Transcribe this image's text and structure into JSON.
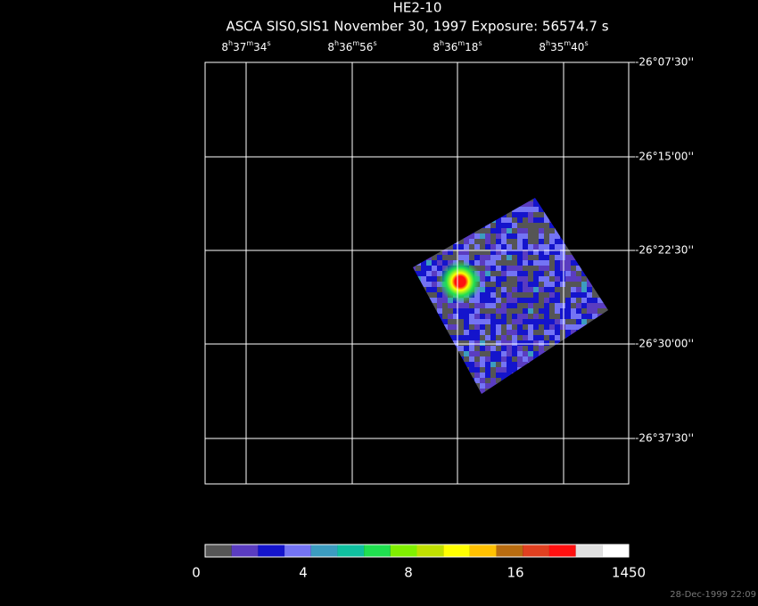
{
  "title": "HE2-10",
  "subtitle": "ASCA SIS0,SIS1 November 30, 1997 Exposure: 56574.7 s",
  "ra_labels": [
    [
      "8",
      "h",
      "37",
      "m",
      "34",
      "s"
    ],
    [
      "8",
      "h",
      "36",
      "m",
      "56",
      "s"
    ],
    [
      "8",
      "h",
      "36",
      "m",
      "18",
      "s"
    ],
    [
      "8",
      "h",
      "35",
      "m",
      "40",
      "s"
    ]
  ],
  "dec_labels": [
    "-26°07'30''",
    "-26°15'00''",
    "-26°22'30''",
    "-26°30'00''",
    "-26°37'30''"
  ],
  "colorbar": {
    "colors": [
      "#555555",
      "#5a3cc0",
      "#1414cc",
      "#7474f4",
      "#3c9cc0",
      "#10c0a0",
      "#20e050",
      "#80f000",
      "#c0e000",
      "#ffff00",
      "#ffc000",
      "#b86c10",
      "#e04020",
      "#ff1010",
      "#e0e0e0",
      "#ffffff"
    ],
    "labels": [
      "0",
      "4",
      "8",
      "16",
      "1450"
    ]
  },
  "timestamp": "28-Dec-1999 22:09"
}
